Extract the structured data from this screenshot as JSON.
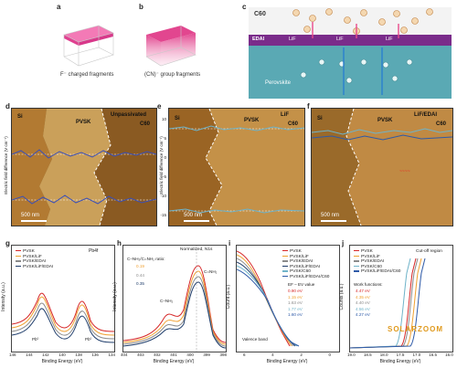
{
  "panels": {
    "a": {
      "letter": "a",
      "caption": "F⁻ charged fragments"
    },
    "b": {
      "letter": "b",
      "caption": "(CN)⁻ group fragments"
    },
    "c": {
      "letter": "c",
      "c60": "C60",
      "edai": "EDAI",
      "lif": [
        "LiF",
        "LiF",
        "LiF"
      ],
      "perovskite": "Perovskite"
    },
    "d": {
      "letter": "d",
      "si": "Si",
      "pvsk": "PVSK",
      "top_right": "Unpassivated",
      "c60": "C60",
      "scale": "500 nm",
      "ylabel": "Electric field difference (V cm⁻¹)",
      "yticks": [
        "10",
        "5",
        "0",
        "-5",
        "-10",
        "-15"
      ]
    },
    "e": {
      "letter": "e",
      "si": "Si",
      "pvsk": "PVSK",
      "top_right": "LiF",
      "c60": "C60",
      "scale": "500 nm",
      "ylabel": "Electric field difference (V cm⁻¹)",
      "yticks": [
        "10",
        "5",
        "0",
        "-5",
        "-10",
        "-15"
      ]
    },
    "f": {
      "letter": "f",
      "si": "Si",
      "pvsk": "PVSK",
      "top_right": "LiF/EDAI",
      "c60": "C60",
      "scale": "500 nm"
    },
    "g": {
      "letter": "g",
      "xlabel": "Binding Energy (eV)",
      "ylabel": "Intensity (a.u.)",
      "tag": "Pb4f",
      "xticks": [
        "146",
        "144",
        "142",
        "140",
        "138",
        "136",
        "134"
      ],
      "peaks": [
        "Pb⁰",
        "Pb⁰"
      ],
      "legend": [
        "PVSK",
        "PVSK/LiF",
        "PVSK/EDAI",
        "PVSK/LiF/EDAI"
      ]
    },
    "h": {
      "letter": "h",
      "xlabel": "Binding Energy (eV)",
      "ylabel": "Intensity (a.u.)",
      "tag": "Normalized, N1s",
      "xticks": [
        "404",
        "403",
        "402",
        "401",
        "400",
        "399",
        "398"
      ],
      "ratio_title": "C–NH₂/C=NH₂ ratio:",
      "ratios": [
        "0.19",
        "0.44",
        "0.35"
      ],
      "peak1": "C–NH₂",
      "peak2": "C=NH₂"
    },
    "i": {
      "letter": "i",
      "xlabel": "Binding Energy (eV)",
      "ylabel": "Count (a.u.)",
      "xticks": [
        "6",
        "4",
        "2",
        "0"
      ],
      "legend": [
        "PVSK",
        "PVSK/LiF",
        "PVSK/EDAI",
        "PVSK/LiF/EDAI",
        "PVSK/C60",
        "PVSK/LiF/EDAI/C60"
      ],
      "value_title": "EF – EV value",
      "values": [
        "0.90 eV",
        "1.15 eV",
        "1.63 eV",
        "1.77 eV",
        "1.60 eV"
      ],
      "band": "Valence band"
    },
    "j": {
      "letter": "j",
      "xlabel": "Binding Energy (eV)",
      "ylabel": "Counts (a.u.)",
      "tag": "Cut-off region",
      "xticks": [
        "19.0",
        "18.5",
        "18.0",
        "17.5",
        "17.0",
        "16.5",
        "16.0"
      ],
      "legend": [
        "PVSK",
        "PVSK/LiF",
        "PVSK/EDAI",
        "PVSK/C60",
        "PVSK/LiF/EDAI/C60"
      ],
      "wf_title": "Work functions:",
      "values": [
        "4.47 eV",
        "4.35 eV",
        "4.40 eV",
        "4.56 eV",
        "4.27 eV"
      ]
    }
  },
  "logo": "SOLARZOOM",
  "colors": {
    "pvsk": "#d62728",
    "lif": "#f0a030",
    "edai": "#8a8a8a",
    "lifedai": "#1f3d6b",
    "c60": "#6fb3c9",
    "lifedaic60": "#2e5aa8"
  }
}
